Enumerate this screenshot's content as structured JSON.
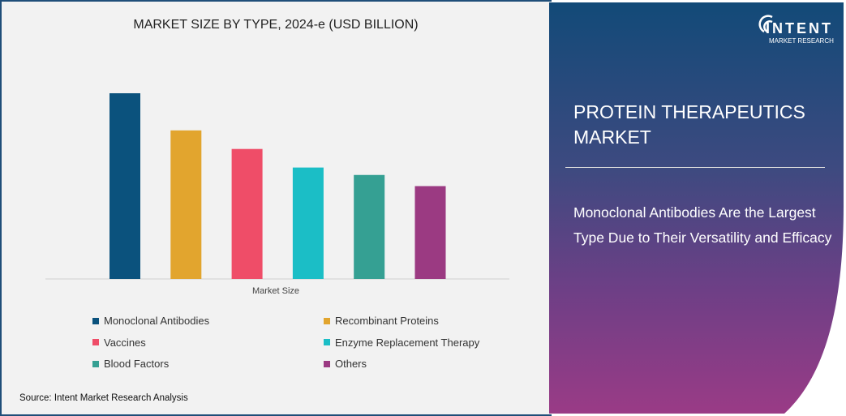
{
  "chart_data": {
    "type": "bar",
    "title": "MARKET SIZE BY TYPE, 2024-e (USD BILLION)",
    "xlabel": "Market Size",
    "ylabel": "",
    "categories": [
      "Monoclonal Antibodies",
      "Recombinant Proteins",
      "Vaccines",
      "Enzyme Replacement Therapy",
      "Blood Factors",
      "Others"
    ],
    "values": [
      100,
      80,
      70,
      60,
      56,
      50
    ],
    "value_note_hidden": false,
    "colors": [
      "#0b527d",
      "#e2a52e",
      "#ef4d68",
      "#1bbec6",
      "#35a093",
      "#9b3a82"
    ],
    "grid": false,
    "axis_ticks_shown": false,
    "legend_placement": "bottom"
  },
  "source": "Source:  Intent Market Research Analysis",
  "side": {
    "title": "PROTEIN THERAPEUTICS MARKET",
    "subtitle": "Monoclonal Antibodies Are the Largest Type Due to Their Versatility and Efficacy",
    "logo_name": "INTENT",
    "logo_sub": "MARKET RESEARCH"
  }
}
